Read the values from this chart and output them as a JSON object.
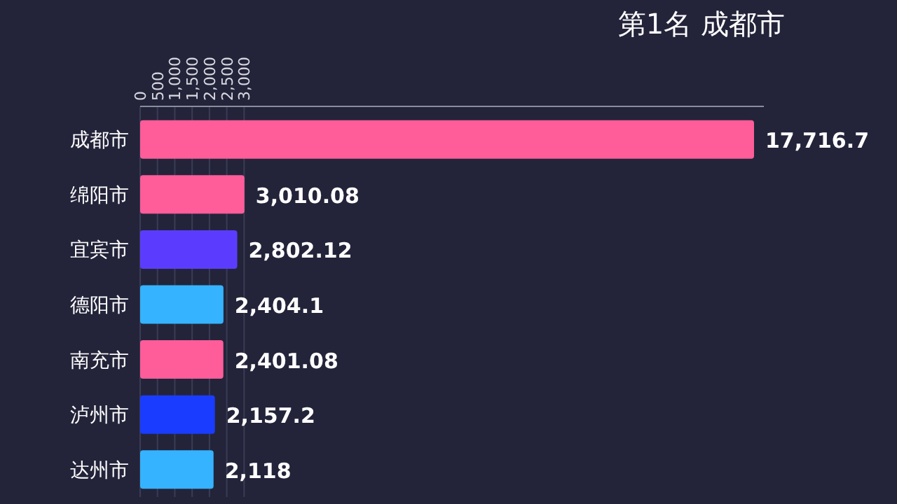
{
  "chart_data": {
    "type": "bar",
    "orientation": "horizontal",
    "title": "第1名 成都市",
    "categories": [
      "成都市",
      "绵阳市",
      "宜宾市",
      "德阳市",
      "南充市",
      "泸州市",
      "达州市"
    ],
    "values": [
      17716.7,
      3010.08,
      2802.12,
      2404.1,
      2401.08,
      2157.2,
      2118
    ],
    "colors": [
      "#ff5c9a",
      "#ff5c9a",
      "#5b3cff",
      "#35b3ff",
      "#ff5c9a",
      "#1a3cff",
      "#35b3ff"
    ],
    "value_labels": [
      "17,716.7",
      "3,010.08",
      "2,802.12",
      "2,404.1",
      "2,401.08",
      "2,157.2",
      "2,118"
    ],
    "xlim": [
      0,
      18000
    ],
    "xticks": [
      0,
      500,
      {
        "value": 1000,
        "label": "1,000"
      },
      {
        "value": 1500,
        "label": "1,500"
      },
      {
        "value": 2000,
        "label": "2,000"
      },
      {
        "value": 2500,
        "label": "2,500"
      },
      {
        "value": 3000,
        "label": "3,000"
      }
    ],
    "grid": "x"
  }
}
